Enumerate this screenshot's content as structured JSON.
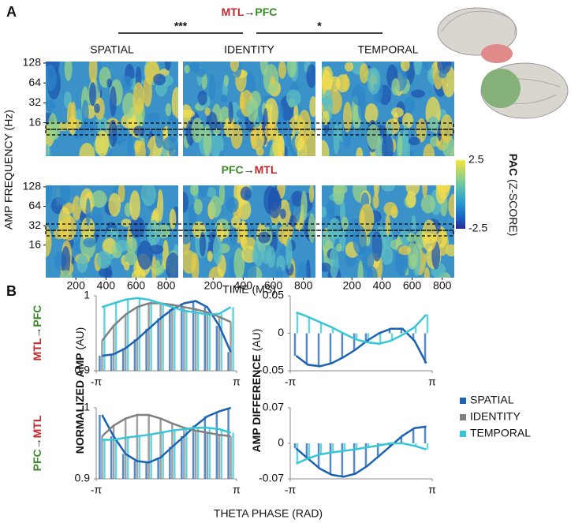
{
  "panel_a": {
    "label": "A",
    "title_from": "MTL",
    "arrow": "→",
    "title_to": "PFC",
    "sig_left": "***",
    "sig_right": "*",
    "conditions": [
      "SPATIAL",
      "IDENTITY",
      "TEMPORAL"
    ],
    "row2_from": "PFC",
    "row2_to": "MTL",
    "ylabel": "AMP FREQUENCY (Hz)",
    "ylim": [
      5,
      135
    ],
    "log_y": true,
    "yticks": [
      16,
      32,
      64,
      128
    ],
    "xlabel": "TIME (MS)",
    "xlim": [
      0,
      880
    ],
    "xticks": [
      200,
      400,
      600,
      800
    ],
    "colorbar": {
      "label_bold": "PAC",
      "label": "(Z-SCORE)",
      "clim": [
        -2.5,
        2.5
      ],
      "ticks": [
        2.5,
        -2.5
      ]
    }
  },
  "panel_b": {
    "label": "B",
    "xlabel": "THETA PHASE (RAD)",
    "ylabel_left_bold": "NORMALIZED AMP",
    "ylabel_left": "(AU)",
    "ylabel_right_bold": "AMP DIFFERENCE",
    "ylabel_right": "(AU)",
    "row1_from": "MTL",
    "row1_to": "PFC",
    "row2_from": "PFC",
    "row2_to": "MTL",
    "arrow": "→"
  },
  "chart_data": [
    {
      "type": "bar-line",
      "xlim": [
        -3.1416,
        3.1416
      ],
      "xticks": [
        {
          "value": -3.1416,
          "label": "-π"
        },
        {
          "value": 3.1416,
          "label": "π"
        }
      ],
      "ylim": [
        0.9,
        1.0
      ],
      "yticks": [
        0.9,
        1
      ],
      "x": [
        -2.88,
        -2.36,
        -1.83,
        -1.31,
        -0.79,
        -0.26,
        0.26,
        0.79,
        1.31,
        1.83,
        2.36,
        2.88
      ],
      "series": [
        {
          "name": "SPATIAL",
          "color": "#1c62b4",
          "values": [
            0.92,
            0.922,
            0.93,
            0.942,
            0.956,
            0.97,
            0.982,
            0.99,
            0.993,
            0.985,
            0.96,
            0.925
          ]
        },
        {
          "name": "IDENTITY",
          "color": "#808080",
          "values": [
            0.94,
            0.96,
            0.975,
            0.985,
            0.99,
            0.99,
            0.988,
            0.985,
            0.982,
            0.978,
            0.972,
            0.965
          ]
        },
        {
          "name": "TEMPORAL",
          "color": "#36c6d6",
          "values": [
            0.985,
            0.99,
            0.995,
            0.997,
            0.995,
            0.99,
            0.985,
            0.98,
            0.978,
            0.975,
            0.976,
            0.985
          ]
        }
      ]
    },
    {
      "type": "bar-line",
      "xlim": [
        -3.1416,
        3.1416
      ],
      "xticks": [
        {
          "value": -3.1416,
          "label": "-π"
        },
        {
          "value": 3.1416,
          "label": "π"
        }
      ],
      "ylim": [
        -0.05,
        0.05
      ],
      "yticks": [
        -0.05,
        0,
        0.05
      ],
      "x": [
        -2.88,
        -2.36,
        -1.83,
        -1.31,
        -0.79,
        -0.26,
        0.26,
        0.79,
        1.31,
        1.83,
        2.36,
        2.88
      ],
      "series": [
        {
          "name": "SPATIAL",
          "color": "#1c62b4",
          "values": [
            -0.03,
            -0.042,
            -0.044,
            -0.04,
            -0.032,
            -0.022,
            -0.01,
            0.0,
            0.006,
            0.006,
            -0.01,
            -0.04
          ]
        },
        {
          "name": "TEMPORAL",
          "color": "#36c6d6",
          "values": [
            0.028,
            0.022,
            0.015,
            0.008,
            0.0,
            -0.008,
            -0.012,
            -0.014,
            -0.01,
            -0.002,
            0.008,
            0.025
          ]
        }
      ]
    },
    {
      "type": "bar-line",
      "xlim": [
        -3.1416,
        3.1416
      ],
      "xticks": [
        {
          "value": -3.1416,
          "label": "-π"
        },
        {
          "value": 3.1416,
          "label": "π"
        }
      ],
      "ylim": [
        0.9,
        1.0
      ],
      "yticks": [
        0.9,
        1
      ],
      "x": [
        -2.88,
        -2.36,
        -1.83,
        -1.31,
        -0.79,
        -0.26,
        0.26,
        0.79,
        1.31,
        1.83,
        2.36,
        2.88
      ],
      "series": [
        {
          "name": "SPATIAL",
          "color": "#1c62b4",
          "values": [
            0.99,
            0.96,
            0.935,
            0.925,
            0.923,
            0.93,
            0.945,
            0.96,
            0.975,
            0.988,
            0.995,
            1.0
          ]
        },
        {
          "name": "IDENTITY",
          "color": "#808080",
          "values": [
            0.96,
            0.975,
            0.985,
            0.99,
            0.99,
            0.985,
            0.978,
            0.972,
            0.968,
            0.965,
            0.962,
            0.96
          ]
        },
        {
          "name": "TEMPORAL",
          "color": "#36c6d6",
          "values": [
            0.955,
            0.955,
            0.958,
            0.96,
            0.962,
            0.965,
            0.968,
            0.97,
            0.972,
            0.972,
            0.97,
            0.965
          ]
        }
      ]
    },
    {
      "type": "bar-line",
      "xlim": [
        -3.1416,
        3.1416
      ],
      "xticks": [
        {
          "value": -3.1416,
          "label": "-π"
        },
        {
          "value": 3.1416,
          "label": "π"
        }
      ],
      "ylim": [
        -0.07,
        0.07
      ],
      "yticks": [
        -0.07,
        0,
        0.07
      ],
      "x": [
        -2.88,
        -2.36,
        -1.83,
        -1.31,
        -0.79,
        -0.26,
        0.26,
        0.79,
        1.31,
        1.83,
        2.36,
        2.88
      ],
      "series": [
        {
          "name": "SPATIAL",
          "color": "#1c62b4",
          "values": [
            -0.01,
            -0.03,
            -0.05,
            -0.062,
            -0.066,
            -0.06,
            -0.045,
            -0.025,
            -0.005,
            0.015,
            0.03,
            0.033
          ]
        },
        {
          "name": "TEMPORAL",
          "color": "#36c6d6",
          "values": [
            -0.04,
            -0.03,
            -0.022,
            -0.018,
            -0.015,
            -0.012,
            -0.008,
            -0.004,
            0.0,
            0.0,
            -0.005,
            -0.012
          ]
        }
      ]
    }
  ]
}
